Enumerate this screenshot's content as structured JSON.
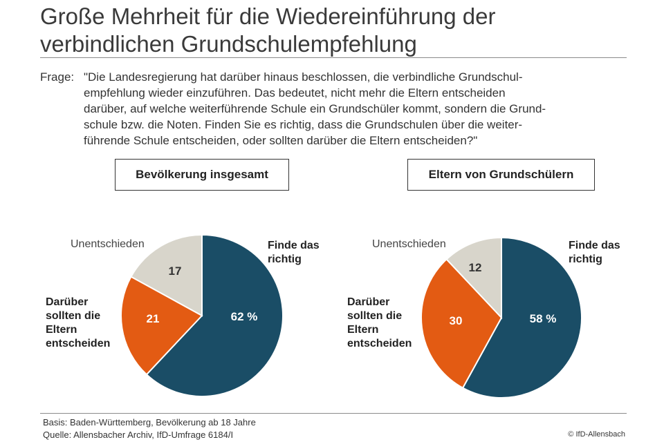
{
  "title_line1": "Große Mehrheit für die Wiedereinführung der",
  "title_line2": "verbindlichen Grundschulempfehlung",
  "question_label": "Frage:",
  "question_text": "\"Die Landesregierung hat darüber hinaus beschlossen, die verbindliche Grundschul-\nempfehlung wieder einzuführen. Das bedeutet, nicht mehr die Eltern entscheiden\ndarüber, auf welche weiterführende Schule ein Grundschüler kommt, sondern die Grund-\nschule bzw. die Noten. Finden Sie es richtig, dass die Grundschulen über die weiter-\nführende Schule entscheiden, oder sollten darüber die Eltern entscheiden?\"",
  "chart_data": [
    {
      "type": "pie",
      "title": "Bevölkerung insgesamt",
      "slices": [
        {
          "label": "Finde das richtig",
          "value": 62,
          "display": "62 %",
          "color": "#1a4d66"
        },
        {
          "label": "Darüber sollten die Eltern entscheiden",
          "value": 21,
          "display": "21",
          "color": "#e35b13"
        },
        {
          "label": "Unentschieden",
          "value": 17,
          "display": "17",
          "color": "#d8d5cb"
        }
      ]
    },
    {
      "type": "pie",
      "title": "Eltern von Grundschülern",
      "slices": [
        {
          "label": "Finde das richtig",
          "value": 58,
          "display": "58 %",
          "color": "#1a4d66"
        },
        {
          "label": "Darüber sollten die Eltern entscheiden",
          "value": 30,
          "display": "30",
          "color": "#e35b13"
        },
        {
          "label": "Unentschieden",
          "value": 12,
          "display": "12",
          "color": "#d8d5cb"
        }
      ]
    }
  ],
  "footer_basis": "Basis: Baden-Württemberg, Bevölkerung ab 18 Jahre",
  "footer_source": "Quelle: Allensbacher Archiv, IfD-Umfrage 6184/I",
  "copyright": "© IfD-Allensbach"
}
